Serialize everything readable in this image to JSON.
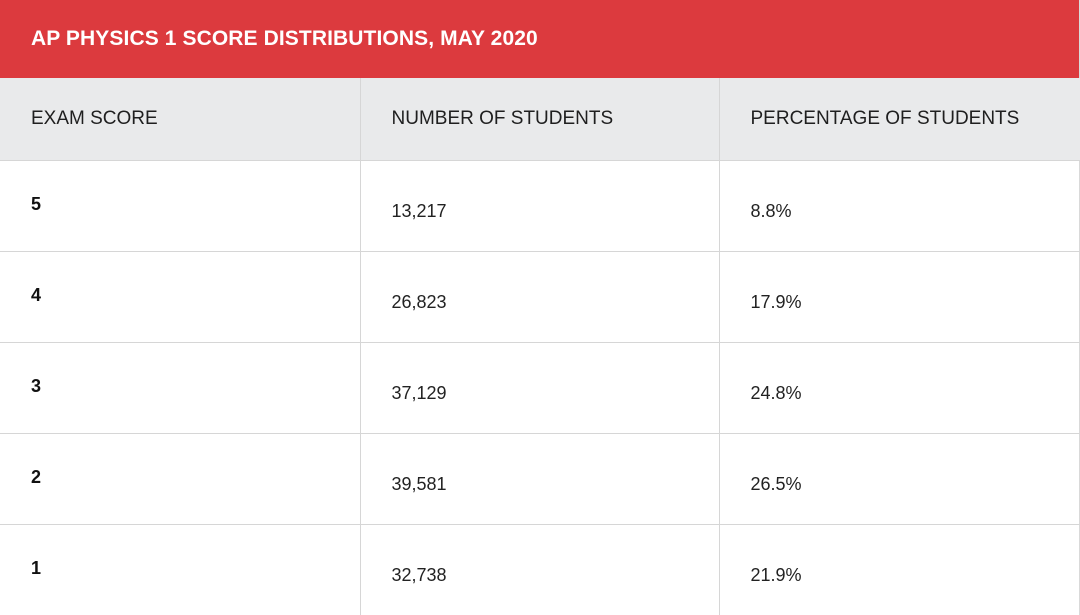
{
  "title": "AP PHYSICS 1 SCORE DISTRIBUTIONS, MAY 2020",
  "columns": [
    "EXAM SCORE",
    "NUMBER OF STUDENTS",
    "PERCENTAGE OF STUDENTS"
  ],
  "rows": [
    {
      "score": "5",
      "students": "13,217",
      "percent": "8.8%"
    },
    {
      "score": "4",
      "students": "26,823",
      "percent": "17.9%"
    },
    {
      "score": "3",
      "students": "37,129",
      "percent": "24.8%"
    },
    {
      "score": "2",
      "students": "39,581",
      "percent": "26.5%"
    },
    {
      "score": "1",
      "students": "32,738",
      "percent": "21.9%"
    }
  ],
  "colors": {
    "title_bar": "#dc3a3e",
    "header_bg": "#e9eaeb",
    "border": "#d6d6d6"
  },
  "chart_data": {
    "type": "table",
    "title": "AP PHYSICS 1 SCORE DISTRIBUTIONS, MAY 2020",
    "columns": [
      "EXAM SCORE",
      "NUMBER OF STUDENTS",
      "PERCENTAGE OF STUDENTS"
    ],
    "rows": [
      [
        5,
        13217,
        8.8
      ],
      [
        4,
        26823,
        17.9
      ],
      [
        3,
        37129,
        24.8
      ],
      [
        2,
        39581,
        26.5
      ],
      [
        1,
        32738,
        21.9
      ]
    ]
  }
}
